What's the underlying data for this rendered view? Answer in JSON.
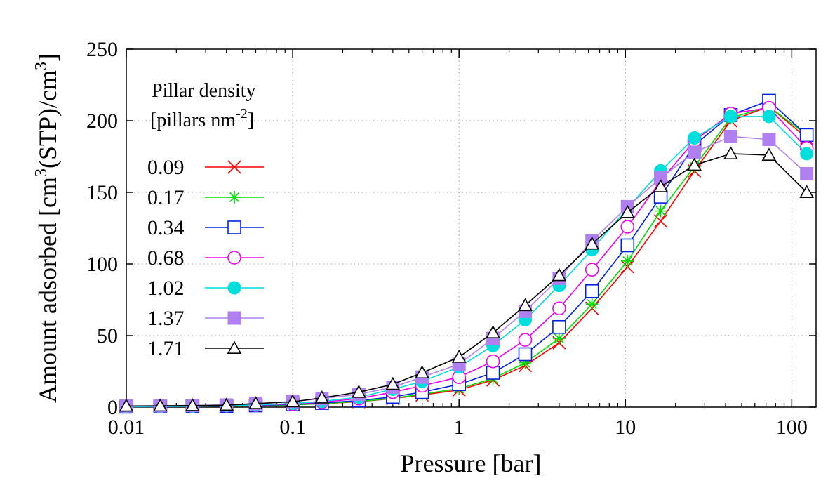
{
  "chart_data": {
    "type": "line",
    "xlabel": "Pressure [bar]",
    "ylabel_parts": [
      "Amount adsorbed [cm",
      "3",
      "(STP)/cm",
      "3",
      "]"
    ],
    "legend_title_line1": "Pillar density",
    "legend_title_line2_parts": [
      "[pillars nm",
      "-2",
      "]"
    ],
    "x_scale": "log",
    "xlim": [
      0.01,
      140
    ],
    "ylim": [
      0,
      250
    ],
    "x_ticks": [
      0.01,
      0.1,
      1,
      10,
      100
    ],
    "x_tick_labels": [
      "0.01",
      "0.1",
      "1",
      "10",
      "100"
    ],
    "y_ticks": [
      0,
      50,
      100,
      150,
      200,
      250
    ],
    "y_tick_labels": [
      "0",
      "50",
      "100",
      "150",
      "200",
      "250"
    ],
    "grid": "dotted",
    "legend_position": "top-left",
    "x": [
      0.01,
      0.016,
      0.025,
      0.04,
      0.06,
      0.1,
      0.15,
      0.25,
      0.4,
      0.6,
      1.0,
      1.6,
      2.5,
      4.0,
      6.3,
      10.3,
      16.3,
      26.0,
      43.0,
      73.0,
      123.0
    ],
    "series": [
      {
        "name": "0.09",
        "color": "#ff0000",
        "marker": "x",
        "values": [
          0.3,
          0.4,
          0.5,
          0.7,
          1.0,
          1.6,
          2.4,
          3.8,
          6.0,
          8.5,
          12,
          19,
          29,
          45,
          69,
          98,
          130,
          165,
          200,
          210,
          188
        ]
      },
      {
        "name": "0.17",
        "color": "#00dd00",
        "marker": "star",
        "values": [
          0.3,
          0.4,
          0.5,
          0.7,
          1.0,
          1.6,
          2.5,
          4.0,
          6.2,
          9.0,
          13,
          20,
          31,
          48,
          72,
          102,
          137,
          168,
          202,
          210,
          190
        ]
      },
      {
        "name": "0.34",
        "color": "#0022dd",
        "marker": "open-square",
        "values": [
          0.3,
          0.4,
          0.6,
          0.8,
          1.2,
          1.9,
          2.9,
          4.6,
          7.2,
          10.5,
          16,
          24,
          37,
          56,
          81,
          113,
          147,
          183,
          204,
          214,
          190
        ]
      },
      {
        "name": "0.68",
        "color": "#ee00ee",
        "marker": "open-circle",
        "values": [
          0.4,
          0.5,
          0.7,
          1.0,
          1.4,
          2.3,
          3.5,
          6.0,
          10.5,
          15,
          21,
          32,
          47,
          69,
          96,
          126,
          158,
          186,
          205,
          209,
          181
        ]
      },
      {
        "name": "1.02",
        "color": "#00dddd",
        "marker": "filled-circle",
        "values": [
          0.4,
          0.5,
          0.7,
          1.0,
          1.5,
          2.6,
          4.0,
          7.0,
          12.5,
          18,
          28,
          43,
          61,
          85,
          110,
          139,
          165,
          188,
          203,
          203,
          177
        ]
      },
      {
        "name": "1.37",
        "color": "#b080f0",
        "marker": "filled-square",
        "values": [
          0.9,
          1.0,
          1.2,
          1.5,
          2.5,
          4.0,
          6.0,
          9.0,
          14,
          21,
          30,
          48,
          67,
          90,
          116,
          140,
          160,
          178,
          189,
          187,
          163
        ]
      },
      {
        "name": "1.71",
        "color": "#000000",
        "marker": "open-triangle",
        "values": [
          0.8,
          0.9,
          1.1,
          1.4,
          2.5,
          3.8,
          6.5,
          10.5,
          16,
          24,
          35,
          52,
          71,
          92,
          114,
          136,
          154,
          169,
          177,
          176,
          150
        ]
      }
    ]
  }
}
